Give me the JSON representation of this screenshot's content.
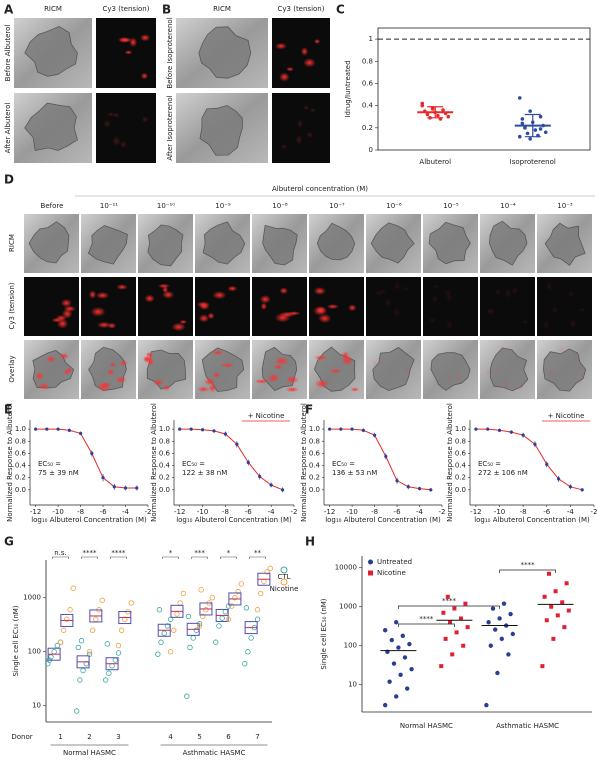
{
  "panel_letters": [
    "A",
    "B",
    "C",
    "D",
    "E",
    "F",
    "G",
    "H"
  ],
  "panel_a": {
    "columns": [
      "RICM",
      "Cy3 (tension)"
    ],
    "rows": [
      "Before Albuterol",
      "After Albuterol"
    ]
  },
  "panel_b": {
    "columns": [
      "RICM",
      "Cy3 (tension)"
    ],
    "rows": [
      "Before Isoproterenol",
      "After Isoproterenol"
    ]
  },
  "panel_d": {
    "title": "Albuterol concentration (M)",
    "columns": [
      "Before",
      "10⁻¹¹",
      "10⁻¹⁰",
      "10⁻⁹",
      "10⁻⁸",
      "10⁻⁷",
      "10⁻⁶",
      "10⁻⁵",
      "10⁻⁴",
      "10⁻³"
    ],
    "rows": [
      "RICM",
      "Cy3 (tension)",
      "Overlay"
    ]
  },
  "chart_data": [
    {
      "type": "group_summary",
      "y_label": "Idrug/Iuntreated",
      "categories": [
        "Albuterol",
        "Isoproterenol"
      ],
      "ylim": [
        0,
        1.1
      ],
      "yticks": [
        0,
        0.2,
        0.4,
        0.6,
        0.8,
        1
      ],
      "reference_line": 1,
      "groups": [
        {
          "color": "#e8282b",
          "values": [
            0.42,
            0.38,
            0.36,
            0.35,
            0.34,
            0.33,
            0.32,
            0.31,
            0.3,
            0.29,
            0.28,
            0.4,
            0.37
          ],
          "mean": 0.34,
          "sd": 0.05
        },
        {
          "color": "#2e4da0",
          "values": [
            0.47,
            0.35,
            0.3,
            0.28,
            0.25,
            0.22,
            0.2,
            0.18,
            0.16,
            0.15,
            0.13,
            0.12,
            0.1,
            0.19,
            0.24
          ],
          "mean": 0.22,
          "sd": 0.1
        }
      ]
    },
    {
      "type": "dose_response",
      "x_label": "log₁₀ Albuterol Concentration (M)",
      "y_label": "Normalized Response to Albuterol",
      "annotation": [
        "EC₅₀ =",
        "75 ± 39 nM"
      ],
      "point_color": "#2e3f9a",
      "curve_color": "#e8282b",
      "x": [
        -12,
        -11,
        -10,
        -9,
        -8,
        -7,
        -6,
        -5,
        -4,
        -3
      ],
      "values": [
        1.0,
        1.0,
        1.0,
        0.98,
        0.93,
        0.6,
        0.2,
        0.05,
        0.03,
        0.03
      ],
      "errors": [
        0.02,
        0.02,
        0.02,
        0.03,
        0.03,
        0.05,
        0.06,
        0.05,
        0.04,
        0.04
      ],
      "xlim": [
        -12.5,
        -2
      ],
      "xticks": [
        -12,
        -10,
        -8,
        -6,
        -4,
        -2
      ],
      "ylim": [
        -0.25,
        1.15
      ],
      "yticks": [
        {
          "value": 1,
          "label": "1.0"
        },
        0.8,
        0.6,
        0.4,
        0.2,
        {
          "value": 0,
          "label": "0.0"
        }
      ]
    },
    {
      "type": "dose_response",
      "x_label": "log₁₀ Albuterol Concentration (M)",
      "y_label": "Normalized Response to Albuterol",
      "annotation": [
        "EC₅₀ =",
        "122 ± 38 nM"
      ],
      "tag": "+ Nicotine",
      "point_color": "#2e3f9a",
      "curve_color": "#e8282b",
      "x": [
        -12,
        -11,
        -10,
        -9,
        -8,
        -7,
        -6,
        -5,
        -4,
        -3
      ],
      "values": [
        1.0,
        1.0,
        0.99,
        0.97,
        0.92,
        0.75,
        0.45,
        0.22,
        0.08,
        0.0
      ],
      "errors": [
        0.02,
        0.02,
        0.02,
        0.03,
        0.04,
        0.05,
        0.05,
        0.05,
        0.04,
        0.04
      ],
      "xlim": [
        -12.5,
        -2
      ],
      "xticks": [
        -12,
        -10,
        -8,
        -6,
        -4,
        -2
      ],
      "ylim": [
        -0.25,
        1.15
      ],
      "yticks": [
        {
          "value": 1,
          "label": "1.0"
        },
        0.8,
        0.6,
        0.4,
        0.2,
        {
          "value": 0,
          "label": "0.0"
        }
      ]
    },
    {
      "type": "dose_response",
      "x_label": "log₁₀ Albuterol Concentration (M)",
      "y_label": "Normalized Response to Albuterol",
      "annotation": [
        "EC₅₀ =",
        "136 ± 53 nM"
      ],
      "point_color": "#2e3f9a",
      "curve_color": "#e8282b",
      "x": [
        -12,
        -11,
        -10,
        -9,
        -8,
        -7,
        -6,
        -5,
        -4,
        -3
      ],
      "values": [
        1.0,
        1.0,
        1.0,
        0.98,
        0.9,
        0.55,
        0.15,
        0.05,
        0.02,
        0.0
      ],
      "errors": [
        0.02,
        0.02,
        0.02,
        0.03,
        0.04,
        0.05,
        0.05,
        0.04,
        0.03,
        0.03
      ],
      "xlim": [
        -12.5,
        -2
      ],
      "xticks": [
        -12,
        -10,
        -8,
        -6,
        -4,
        -2
      ],
      "ylim": [
        -0.25,
        1.15
      ],
      "yticks": [
        {
          "value": 1,
          "label": "1.0"
        },
        0.8,
        0.6,
        0.4,
        0.2,
        {
          "value": 0,
          "label": "0.0"
        }
      ]
    },
    {
      "type": "dose_response",
      "x_label": "log₁₀ Albuterol Concentration (M)",
      "y_label": "Normalized Response to Albuterol",
      "annotation": [
        "EC₅₀ =",
        "272 ± 106 nM"
      ],
      "tag": "+ Nicotine",
      "point_color": "#2e3f9a",
      "curve_color": "#e8282b",
      "x": [
        -12,
        -11,
        -10,
        -9,
        -8,
        -7,
        -6,
        -5,
        -4,
        -3
      ],
      "values": [
        1.0,
        1.0,
        0.98,
        0.95,
        0.9,
        0.75,
        0.42,
        0.18,
        0.05,
        0.0
      ],
      "errors": [
        0.02,
        0.02,
        0.03,
        0.03,
        0.04,
        0.05,
        0.05,
        0.05,
        0.04,
        0.03
      ],
      "xlim": [
        -12.5,
        -2
      ],
      "xticks": [
        -12,
        -10,
        -8,
        -6,
        -4,
        -2
      ],
      "ylim": [
        -0.25,
        1.15
      ],
      "yticks": [
        {
          "value": 1,
          "label": "1.0"
        },
        0.8,
        0.6,
        0.4,
        0.2,
        {
          "value": 0,
          "label": "0.0"
        }
      ]
    },
    {
      "type": "donor_scatter",
      "log_y": true,
      "y_label": "Single cell EC₅₀ (nM)",
      "x_label": "Donor",
      "categories": [
        "1",
        "2",
        "3",
        "4",
        "5",
        "6",
        "7"
      ],
      "group_labels": [
        "Normal HASMC",
        "Asthmatic HASMC"
      ],
      "significance": [
        "n.s.",
        "****",
        "****",
        "*",
        "***",
        "*",
        "**"
      ],
      "ylim": [
        5,
        5000
      ],
      "yticks": [
        10,
        100,
        1000
      ],
      "series": [
        {
          "name": "CTL",
          "color": "#3aa8a0",
          "means": [
            90,
            65,
            60,
            250,
            260,
            470,
            280
          ],
          "values": [
            [
              60,
              80,
              100,
              130,
              150,
              70
            ],
            [
              8,
              30,
              45,
              60,
              90,
              120,
              160
            ],
            [
              30,
              40,
              55,
              70,
              95,
              140
            ],
            [
              90,
              150,
              220,
              300,
              400,
              600
            ],
            [
              15,
              120,
              180,
              250,
              330,
              450
            ],
            [
              150,
              300,
              420,
              550,
              700
            ],
            [
              60,
              100,
              180,
              280,
              400,
              650
            ]
          ]
        },
        {
          "name": "Nicotine",
          "color": "#f0a040",
          "means": [
            380,
            460,
            430,
            560,
            620,
            950,
            2200
          ],
          "values": [
            [
              150,
              250,
              400,
              600,
              1500
            ],
            [
              100,
              250,
              400,
              600,
              900
            ],
            [
              130,
              250,
              400,
              550,
              800
            ],
            [
              100,
              250,
              500,
              800,
              1200
            ],
            [
              300,
              450,
              600,
              800,
              1000,
              1400
            ],
            [
              400,
              700,
              1000,
              1300,
              1800
            ],
            [
              600,
              1200,
              2000,
              3000,
              3500
            ]
          ]
        }
      ]
    },
    {
      "type": "group_scatter",
      "log_y": true,
      "y_label": "Single cell EC₅₀ (nM)",
      "categories": [
        "Normal HASMC",
        "Asthmatic HASMC"
      ],
      "significance": [
        "****",
        "****",
        "****"
      ],
      "ylim": [
        2,
        20000
      ],
      "yticks": [
        10,
        100,
        1000,
        10000
      ],
      "series": [
        {
          "name": "Untreated",
          "color": "#2c3e91",
          "means": [
            75,
            330
          ],
          "values": [
            [
              3,
              5,
              8,
              12,
              18,
              25,
              35,
              50,
              70,
              90,
              110,
              140,
              180,
              250,
              400
            ],
            [
              3,
              20,
              60,
              100,
              150,
              200,
              260,
              330,
              400,
              500,
              650,
              900,
              1200
            ]
          ]
        },
        {
          "name": "Nicotine",
          "color": "#e02030",
          "means": [
            450,
            1150
          ],
          "values": [
            [
              30,
              60,
              100,
              150,
              220,
              300,
              400,
              500,
              700,
              900,
              1200,
              1800
            ],
            [
              30,
              150,
              300,
              450,
              600,
              800,
              1000,
              1300,
              1800,
              2500,
              4000,
              7000
            ]
          ]
        }
      ]
    }
  ]
}
